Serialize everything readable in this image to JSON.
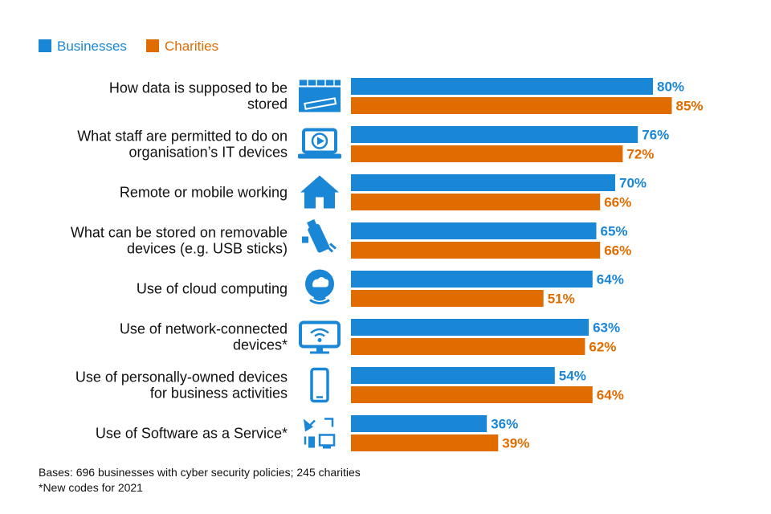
{
  "chart_data": {
    "type": "bar",
    "orientation": "horizontal",
    "categories": [
      [
        "How data is supposed to be",
        "stored"
      ],
      [
        "What staff are permitted to do on",
        "organisation’s IT devices"
      ],
      [
        "Remote or mobile working"
      ],
      [
        "What can be stored on removable",
        "devices (e.g. USB sticks)"
      ],
      [
        "Use of cloud computing"
      ],
      [
        "Use of network-connected",
        "devices*"
      ],
      [
        "Use of personally-owned devices",
        "for business activities"
      ],
      [
        "Use of Software as a Service*"
      ]
    ],
    "category_icons": [
      "confidential-folder-icon",
      "laptop-video-icon",
      "house-icon",
      "usb-stick-icon",
      "cloud-wifi-icon",
      "wifi-monitor-icon",
      "smartphone-icon",
      "satellite-devices-icon"
    ],
    "series": [
      {
        "name": "Businesses",
        "color": "#1a86d6",
        "values": [
          80,
          76,
          70,
          65,
          64,
          63,
          54,
          36
        ]
      },
      {
        "name": "Charities",
        "color": "#e06c00",
        "values": [
          85,
          72,
          66,
          66,
          51,
          62,
          64,
          39
        ]
      }
    ],
    "value_suffix": "%",
    "xlim": [
      0,
      100
    ],
    "legend_position": "top-left",
    "grid": false
  },
  "notes": {
    "bases": "Bases: 696 businesses with cyber security policies; 245 charities",
    "new_codes": "*New codes for 2021"
  }
}
